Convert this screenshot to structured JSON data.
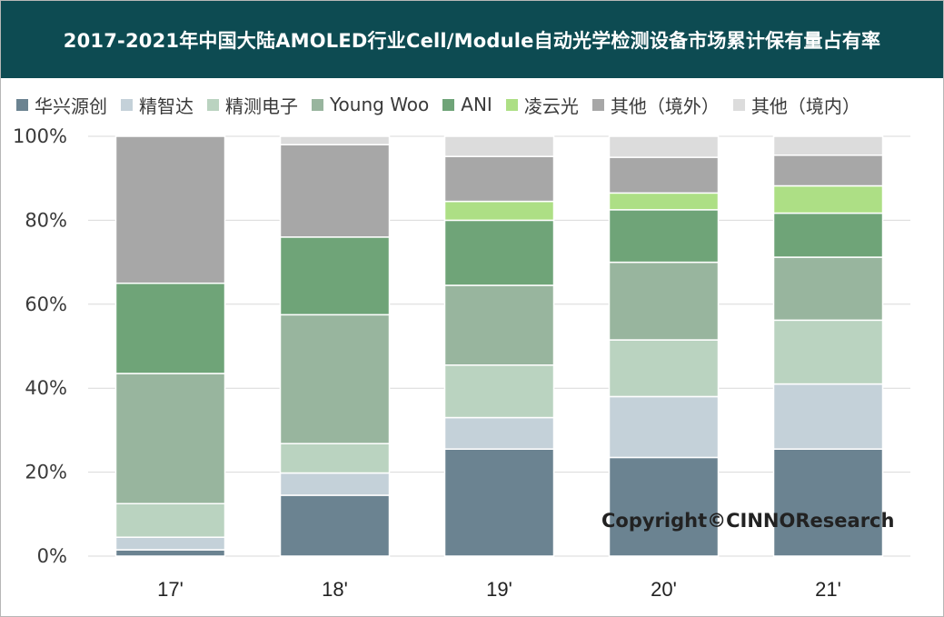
{
  "chart_data": {
    "type": "bar",
    "stacked": true,
    "title": "2017-2021年中国大陆AMOLED行业Cell/Module自动光学检测设备市场累计保有量占有率",
    "categories": [
      "17'",
      "18'",
      "19'",
      "20'",
      "21'"
    ],
    "y_ticks": [
      "0%",
      "20%",
      "40%",
      "60%",
      "80%",
      "100%"
    ],
    "ylim": [
      0,
      100
    ],
    "grid": true,
    "legend_position": "top",
    "series": [
      {
        "name": "华兴源创",
        "color": "#6b8391",
        "values": [
          1.5,
          14.5,
          25.5,
          23.5,
          25.5
        ]
      },
      {
        "name": "精智达",
        "color": "#c4d1d9",
        "values": [
          3.0,
          5.3,
          7.5,
          14.5,
          15.5
        ]
      },
      {
        "name": "精测电子",
        "color": "#bad3c0",
        "values": [
          8.0,
          7.0,
          12.5,
          13.5,
          15.2
        ]
      },
      {
        "name": "Young Woo",
        "color": "#98b59e",
        "values": [
          31.0,
          30.7,
          19.0,
          18.5,
          15.0
        ]
      },
      {
        "name": "ANI",
        "color": "#6fa478",
        "values": [
          21.5,
          18.5,
          15.5,
          12.5,
          10.5
        ]
      },
      {
        "name": "凌云光",
        "color": "#addf85",
        "values": [
          0,
          0,
          4.5,
          4.0,
          6.5
        ]
      },
      {
        "name": "其他（境外）",
        "color": "#a7a7a7",
        "values": [
          35.0,
          22.0,
          10.7,
          8.5,
          7.3
        ]
      },
      {
        "name": "其他（境内）",
        "color": "#dcdcdc",
        "values": [
          0,
          2.0,
          4.8,
          5.0,
          4.5
        ]
      }
    ]
  },
  "watermark": "Copyright©CINNOResearch"
}
